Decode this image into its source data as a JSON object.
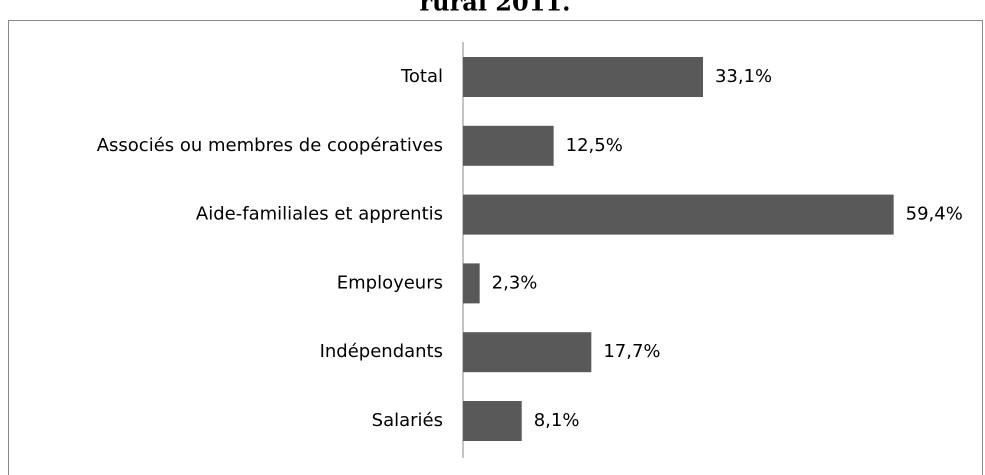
{
  "chart_data": {
    "type": "barh",
    "title": "rural 2011.",
    "categories": [
      "Total",
      "Associés ou membres de coopératives",
      "Aide-familiales et apprentis",
      "Employeurs",
      "Indépendants",
      "Salariés"
    ],
    "values": [
      33.1,
      12.5,
      59.4,
      2.3,
      17.7,
      8.1
    ],
    "value_labels": [
      "33,1%",
      "12,5%",
      "59,4%",
      "2,3%",
      "17,7%",
      "8,1%"
    ],
    "color": "#595959"
  }
}
